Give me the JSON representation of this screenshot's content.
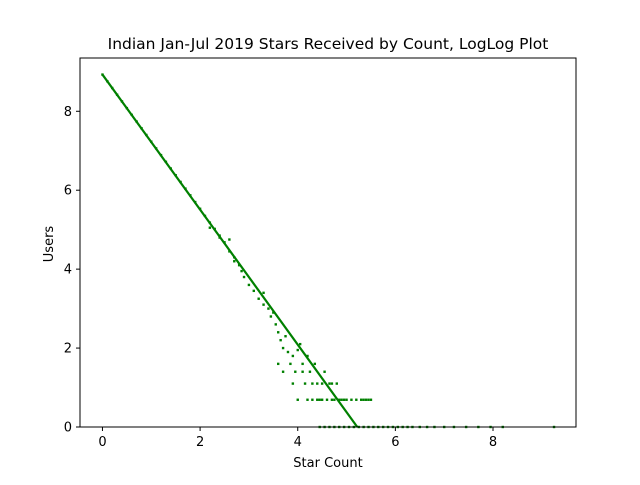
{
  "chart_data": {
    "type": "scatter",
    "title": "Indian Jan-Jul 2019 Stars Received by Count, LogLog Plot",
    "xlabel": "Star Count",
    "ylabel": "Users",
    "xlim": [
      -0.46,
      9.7
    ],
    "ylim": [
      0,
      9.35
    ],
    "xticks": [
      0,
      2,
      4,
      6,
      8
    ],
    "yticks": [
      0,
      2,
      4,
      6,
      8
    ],
    "grid": false,
    "legend": "none",
    "color": "#008000",
    "fit_line": {
      "x": [
        0,
        5.22
      ],
      "y": [
        8.93,
        0
      ]
    },
    "points": [
      [
        0.0,
        8.93
      ],
      [
        0.1,
        8.76
      ],
      [
        0.2,
        8.59
      ],
      [
        0.3,
        8.42
      ],
      [
        0.4,
        8.25
      ],
      [
        0.5,
        8.08
      ],
      [
        0.6,
        7.91
      ],
      [
        0.7,
        7.74
      ],
      [
        0.8,
        7.57
      ],
      [
        0.9,
        7.4
      ],
      [
        1.0,
        7.23
      ],
      [
        1.1,
        7.06
      ],
      [
        1.2,
        6.89
      ],
      [
        1.3,
        6.72
      ],
      [
        1.4,
        6.55
      ],
      [
        1.5,
        6.38
      ],
      [
        1.6,
        6.21
      ],
      [
        1.7,
        6.04
      ],
      [
        1.8,
        5.87
      ],
      [
        1.9,
        5.7
      ],
      [
        2.0,
        5.53
      ],
      [
        2.1,
        5.35
      ],
      [
        2.2,
        5.18
      ],
      [
        2.3,
        5.02
      ],
      [
        2.4,
        4.85
      ],
      [
        2.5,
        4.68
      ],
      [
        2.6,
        4.45
      ],
      [
        2.7,
        4.3
      ],
      [
        2.8,
        4.1
      ],
      [
        2.85,
        3.95
      ],
      [
        2.9,
        3.8
      ],
      [
        3.0,
        3.6
      ],
      [
        3.1,
        3.45
      ],
      [
        3.2,
        3.25
      ],
      [
        3.3,
        3.1
      ],
      [
        3.4,
        3.0
      ],
      [
        3.45,
        2.8
      ],
      [
        3.55,
        2.6
      ],
      [
        3.6,
        2.4
      ],
      [
        3.65,
        2.2
      ],
      [
        3.7,
        2.0
      ],
      [
        3.75,
        2.3
      ],
      [
        3.8,
        1.9
      ],
      [
        3.85,
        1.6
      ],
      [
        3.9,
        1.8
      ],
      [
        3.95,
        1.4
      ],
      [
        4.0,
        1.95
      ],
      [
        4.05,
        2.1
      ],
      [
        4.1,
        1.6
      ],
      [
        4.15,
        1.1
      ],
      [
        4.2,
        1.8
      ],
      [
        4.25,
        1.4
      ],
      [
        4.3,
        1.1
      ],
      [
        4.35,
        1.6
      ],
      [
        4.4,
        1.1
      ],
      [
        4.45,
        0.69
      ],
      [
        4.5,
        1.1
      ],
      [
        4.55,
        1.4
      ],
      [
        4.6,
        0.69
      ],
      [
        4.65,
        1.1
      ],
      [
        4.7,
        0.69
      ],
      [
        4.75,
        0.69
      ],
      [
        4.8,
        1.1
      ],
      [
        4.85,
        0.69
      ],
      [
        4.9,
        0.69
      ],
      [
        4.95,
        0.69
      ],
      [
        5.0,
        0.69
      ],
      [
        5.1,
        0.69
      ],
      [
        5.2,
        0.69
      ],
      [
        5.3,
        0.69
      ],
      [
        5.4,
        0.69
      ],
      [
        5.5,
        0.69
      ],
      [
        3.6,
        1.6
      ],
      [
        3.7,
        1.4
      ],
      [
        3.5,
        2.9
      ],
      [
        3.3,
        3.4
      ],
      [
        2.7,
        4.2
      ],
      [
        2.6,
        4.75
      ],
      [
        2.4,
        4.8
      ],
      [
        2.2,
        5.05
      ],
      [
        4.0,
        0.69
      ],
      [
        3.9,
        1.1
      ],
      [
        4.2,
        0.69
      ],
      [
        4.3,
        0.69
      ],
      [
        4.1,
        1.4
      ],
      [
        4.4,
        0.69
      ],
      [
        4.5,
        0.69
      ],
      [
        4.7,
        1.1
      ],
      [
        5.35,
        0.69
      ],
      [
        5.45,
        0.69
      ],
      [
        4.45,
        0.0
      ],
      [
        4.55,
        0.0
      ],
      [
        4.65,
        0.0
      ],
      [
        4.75,
        0.0
      ],
      [
        4.85,
        0.0
      ],
      [
        4.95,
        0.0
      ],
      [
        5.05,
        0.0
      ],
      [
        5.15,
        0.0
      ],
      [
        5.25,
        0.0
      ],
      [
        5.35,
        0.0
      ],
      [
        5.45,
        0.0
      ],
      [
        5.55,
        0.0
      ],
      [
        5.65,
        0.0
      ],
      [
        5.75,
        0.0
      ],
      [
        5.85,
        0.0
      ],
      [
        5.95,
        0.0
      ],
      [
        6.05,
        0.0
      ],
      [
        6.15,
        0.0
      ],
      [
        6.25,
        0.0
      ],
      [
        6.35,
        0.0
      ],
      [
        6.5,
        0.0
      ],
      [
        6.65,
        0.0
      ],
      [
        6.8,
        0.0
      ],
      [
        7.0,
        0.0
      ],
      [
        7.2,
        0.0
      ],
      [
        7.45,
        0.0
      ],
      [
        7.7,
        0.0
      ],
      [
        7.95,
        0.0
      ],
      [
        8.2,
        0.0
      ],
      [
        9.25,
        0.0
      ]
    ]
  }
}
